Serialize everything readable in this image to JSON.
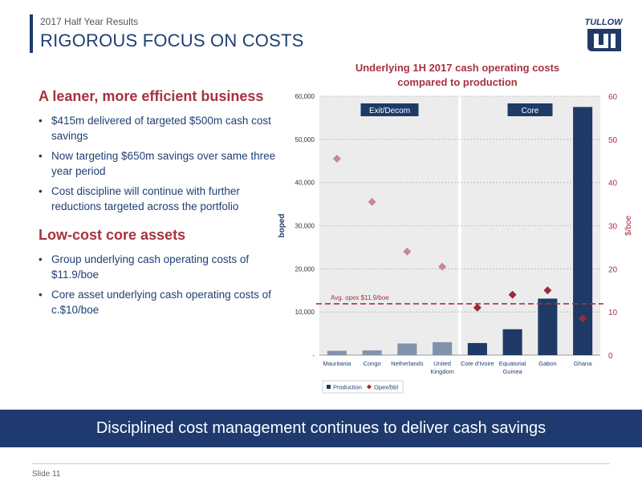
{
  "header": {
    "subtitle": "2017 Half Year Results",
    "title": "RIGOROUS FOCUS ON COSTS",
    "logo_text": "TULLOW"
  },
  "left": {
    "sections": [
      {
        "heading": "A leaner, more efficient business",
        "bullets": [
          "$415m delivered of targeted $500m cash cost savings",
          "Now targeting $650m savings over same three year period",
          "Cost discipline will continue with further reductions targeted across the portfolio"
        ]
      },
      {
        "heading": "Low-cost core assets",
        "bullets": [
          "Group underlying cash operating costs of $11.9/boe",
          "Core asset underlying cash operating costs of c.$10/boe"
        ]
      }
    ]
  },
  "chart_title_line1": "Underlying 1H 2017 cash operating costs",
  "chart_title_line2": "compared to production",
  "chart_data": {
    "type": "bar",
    "categories": [
      "Mauritania",
      "Congo",
      "Netherlands",
      "United Kingdom",
      "Cote d'Ivoire",
      "Equatorial Guinea",
      "Gabon",
      "Ghana"
    ],
    "series": [
      {
        "name": "Production",
        "axis": "left",
        "type": "bar",
        "values": [
          1000,
          1100,
          2700,
          3000,
          2800,
          6000,
          13100,
          57500
        ]
      },
      {
        "name": "Opex/bbl",
        "axis": "right",
        "type": "scatter",
        "values": [
          45.5,
          35.5,
          24,
          20.5,
          11,
          14,
          15,
          8.5
        ]
      }
    ],
    "ylabel": "boped",
    "y2label": "$/boe",
    "ylim": [
      0,
      60000
    ],
    "y2lim": [
      0,
      60
    ],
    "yticks": [
      "-",
      "10,000",
      "20,000",
      "30,000",
      "40,000",
      "50,000",
      "60,000"
    ],
    "y2ticks": [
      "0",
      "10",
      "20",
      "30",
      "40",
      "50",
      "60"
    ],
    "group_labels": [
      "Exit/Decom",
      "Core"
    ],
    "reference_line": {
      "label": "Avg. opex $11.9/boe",
      "value": 11.9
    },
    "legend": "bottom-left",
    "colors": {
      "exit_bar": "#8193ab",
      "core_bar": "#1f3a66",
      "exit_marker": "#c48a8f",
      "core_marker": "#9b2a3a",
      "ref_line": "#a8323e",
      "plot_bg": "#ececec"
    }
  },
  "banner_text": "Disciplined cost management continues to deliver cash savings",
  "footer": {
    "slide": "Slide 11"
  }
}
